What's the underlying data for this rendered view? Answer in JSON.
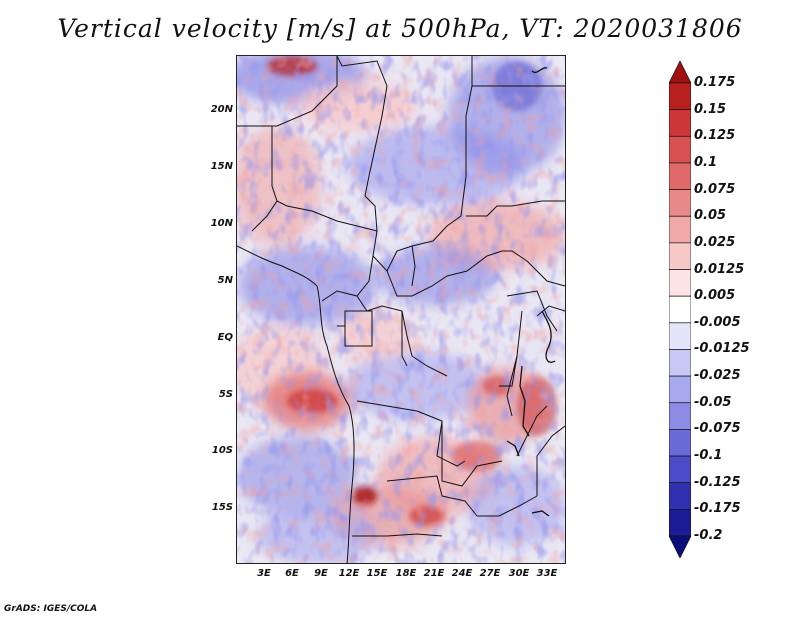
{
  "title": "Vertical velocity [m/s] at 500hPa, VT: 2020031806",
  "credit": "GrADS: IGES/COLA",
  "lat_ticks": [
    "20N",
    "15N",
    "10N",
    "5N",
    "EQ",
    "5S",
    "10S",
    "15S"
  ],
  "lon_ticks": [
    "3E",
    "6E",
    "9E",
    "12E",
    "15E",
    "18E",
    "21E",
    "24E",
    "27E",
    "30E",
    "33E"
  ],
  "colorbar": {
    "labels": [
      "0.175",
      "0.15",
      "0.125",
      "0.1",
      "0.075",
      "0.05",
      "0.025",
      "0.0125",
      "0.005",
      "-0.005",
      "-0.0125",
      "-0.025",
      "-0.05",
      "-0.075",
      "-0.1",
      "-0.125",
      "-0.175",
      "-0.2"
    ],
    "colors": [
      "#a01010",
      "#b82020",
      "#cc3636",
      "#d85050",
      "#e06a6a",
      "#e88a8a",
      "#f0a8a8",
      "#f7c8c8",
      "#fce4e4",
      "#ffffff",
      "#e4e4fa",
      "#c8c8f4",
      "#a8a8ee",
      "#8c8ce6",
      "#6a6ad8",
      "#4c4cc8",
      "#3030b0",
      "#1c1c96",
      "#0c0c7a"
    ]
  }
}
